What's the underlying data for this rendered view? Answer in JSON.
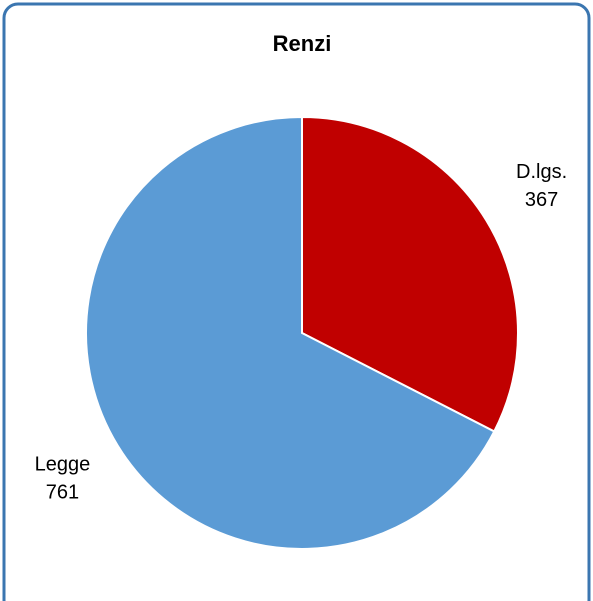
{
  "chart_data": {
    "type": "pie",
    "title": "Renzi",
    "categories": [
      "D.lgs.",
      "Legge"
    ],
    "values": [
      367,
      761
    ],
    "colors": [
      "#c00000",
      "#5b9bd5"
    ]
  }
}
